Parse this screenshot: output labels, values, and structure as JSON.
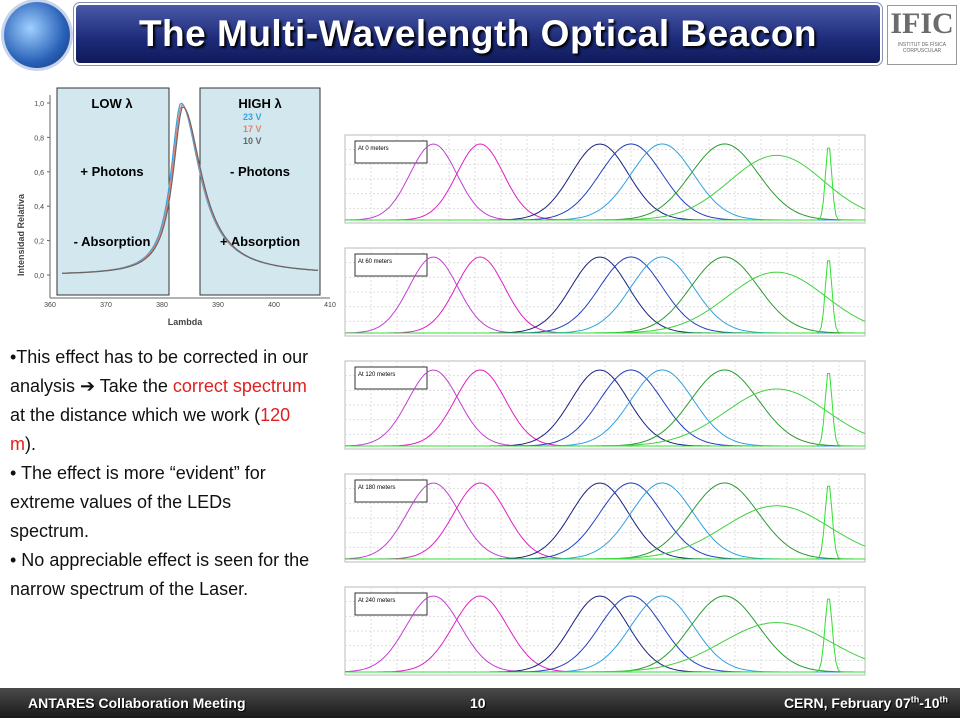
{
  "header": {
    "title": "The Multi-Wavelength Optical Beacon",
    "logo_right": "IFIC",
    "logo_right_sub": "INSTITUT DE FÍSICA CORPUSCULAR"
  },
  "left_plot": {
    "ylabel": "Intensidad Relativa",
    "xlabel": "Lambda",
    "yticks": [
      "1,0",
      "0,8",
      "0,6",
      "0,4",
      "0,2",
      "0,0"
    ],
    "xticks": [
      "360",
      "370",
      "380",
      "390",
      "400",
      "410"
    ],
    "legend": [
      "23 V",
      "17 V",
      "10 V"
    ],
    "low": {
      "title": "LOW λ",
      "photons": "+ Photons",
      "absorption": "- Absorption"
    },
    "high": {
      "title": "HIGH λ",
      "photons": "- Photons",
      "absorption": "+ Absorption"
    }
  },
  "panels": [
    "At 0 meters",
    "At 60 meters",
    "At 120 meters",
    "At 180 meters",
    "At 240 meters"
  ],
  "bullets": [
    [
      {
        "text": "•This effect has to be corrected in our analysis ➔ Take the "
      },
      {
        "text": "correct spectrum",
        "highlight": true
      },
      {
        "text": " at the distance which we work ("
      },
      {
        "text": "120 m",
        "highlight": true
      },
      {
        "text": ")."
      }
    ],
    [
      {
        "text": "• The effect is more “evident” for extreme values of the LEDs spectrum."
      }
    ],
    [
      {
        "text": "• No appreciable effect is seen for the narrow spectrum of the Laser."
      }
    ]
  ],
  "footer": {
    "left": "ANTARES Collaboration Meeting",
    "page": "10",
    "right": [
      {
        "text": "CERN, February 07"
      },
      {
        "text": "th",
        "sup": true
      },
      {
        "text": "-10"
      },
      {
        "text": "th",
        "sup": true
      }
    ]
  }
}
